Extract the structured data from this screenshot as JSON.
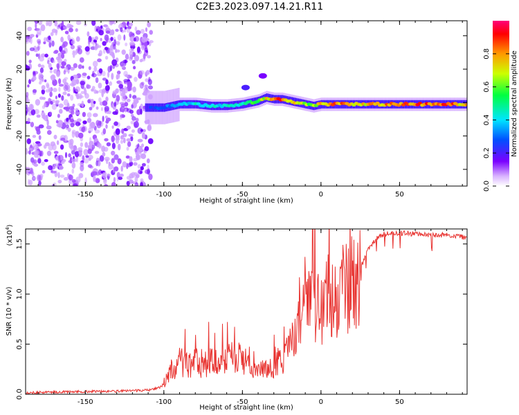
{
  "title": "C2E3.2023.097.14.21.R11",
  "colors": {
    "accent_line": "#e8322f",
    "axis": "#000000"
  },
  "chart_data": [
    {
      "type": "heatmap",
      "xlabel": "Height of straight line (km)",
      "ylabel": "Frequency (Hz)",
      "xlim": [
        -188,
        93
      ],
      "ylim": [
        -50,
        49
      ],
      "x_ticks": [
        -150,
        -100,
        -50,
        0,
        50
      ],
      "y_ticks": [
        40,
        20,
        0,
        -20,
        -40
      ],
      "x_tick_labels": [
        "-150",
        "-100",
        "-50",
        "0",
        "50"
      ],
      "y_tick_labels": [
        "40",
        "20",
        "0",
        "-20",
        "-40"
      ],
      "colorbar": {
        "label": "Normalized spectral amplitude",
        "range": [
          0.0,
          1.0
        ],
        "ticks": [
          0.0,
          0.2,
          0.4,
          0.6,
          0.8
        ],
        "tick_labels": [
          "0.0",
          "0.2",
          "0.4",
          "0.6",
          "0.8"
        ]
      },
      "ridge": {
        "description_free": true,
        "x": [
          -110,
          -100,
          -90,
          -80,
          -70,
          -60,
          -50,
          -40,
          -35,
          -30,
          -25,
          -20,
          -15,
          -10,
          -5,
          0,
          5,
          10,
          20,
          30,
          40,
          50,
          60,
          70,
          80,
          90
        ],
        "freq": [
          -3,
          -3,
          -1,
          -1,
          -2,
          -2,
          -1,
          1,
          3,
          2,
          2,
          1,
          0,
          -1,
          -2,
          -1,
          -1,
          -1,
          -1,
          -1,
          -1,
          -1,
          -1,
          -1,
          -1,
          -1
        ],
        "amplitude": [
          0.25,
          0.3,
          0.4,
          0.45,
          0.45,
          0.45,
          0.5,
          0.6,
          0.75,
          0.85,
          0.9,
          0.85,
          0.8,
          0.7,
          0.65,
          0.8,
          0.85,
          0.9,
          0.75,
          0.8,
          0.85,
          0.9,
          0.9,
          0.9,
          0.9,
          0.8
        ]
      },
      "side_features": [
        {
          "x": -48,
          "freq": 9,
          "amplitude": 0.2
        },
        {
          "x": -37,
          "freq": 16,
          "amplitude": 0.15
        }
      ],
      "noise_region": {
        "x_from": -188,
        "x_to": -108,
        "amplitude": 0.2
      }
    },
    {
      "type": "line",
      "xlabel": "Height of straight line (km)",
      "ylabel": "SNR (10 * v/v)",
      "y_multiplier_label": "(x10",
      "y_multiplier_exp": "4",
      "xlim": [
        -188,
        93
      ],
      "ylim": [
        0,
        16500
      ],
      "x_ticks": [
        -150,
        -100,
        -50,
        0,
        50
      ],
      "x_tick_labels": [
        "-150",
        "-100",
        "-50",
        "0",
        "50"
      ],
      "y_ticks": [
        0,
        5000,
        10000,
        15000
      ],
      "y_tick_labels": [
        "0.0",
        "0.5",
        "1.0",
        "1.5"
      ],
      "series": [
        {
          "name": "SNR",
          "x": [
            -188,
            -160,
            -130,
            -110,
            -102,
            -98,
            -95,
            -90,
            -85,
            -80,
            -75,
            -70,
            -65,
            -60,
            -55,
            -50,
            -45,
            -40,
            -35,
            -30,
            -25,
            -20,
            -15,
            -10,
            -5,
            0,
            5,
            10,
            15,
            20,
            25,
            30,
            35,
            40,
            50,
            60,
            70,
            80,
            90,
            93
          ],
          "y": [
            150,
            250,
            300,
            400,
            700,
            1500,
            2500,
            3200,
            2800,
            3300,
            2700,
            3500,
            3000,
            3800,
            3600,
            3500,
            2600,
            2700,
            2500,
            2900,
            3500,
            4800,
            6500,
            8000,
            9500,
            7800,
            10000,
            9000,
            10500,
            11000,
            12500,
            14500,
            15500,
            16000,
            16100,
            16000,
            15900,
            15900,
            15700,
            15600
          ]
        }
      ]
    }
  ]
}
